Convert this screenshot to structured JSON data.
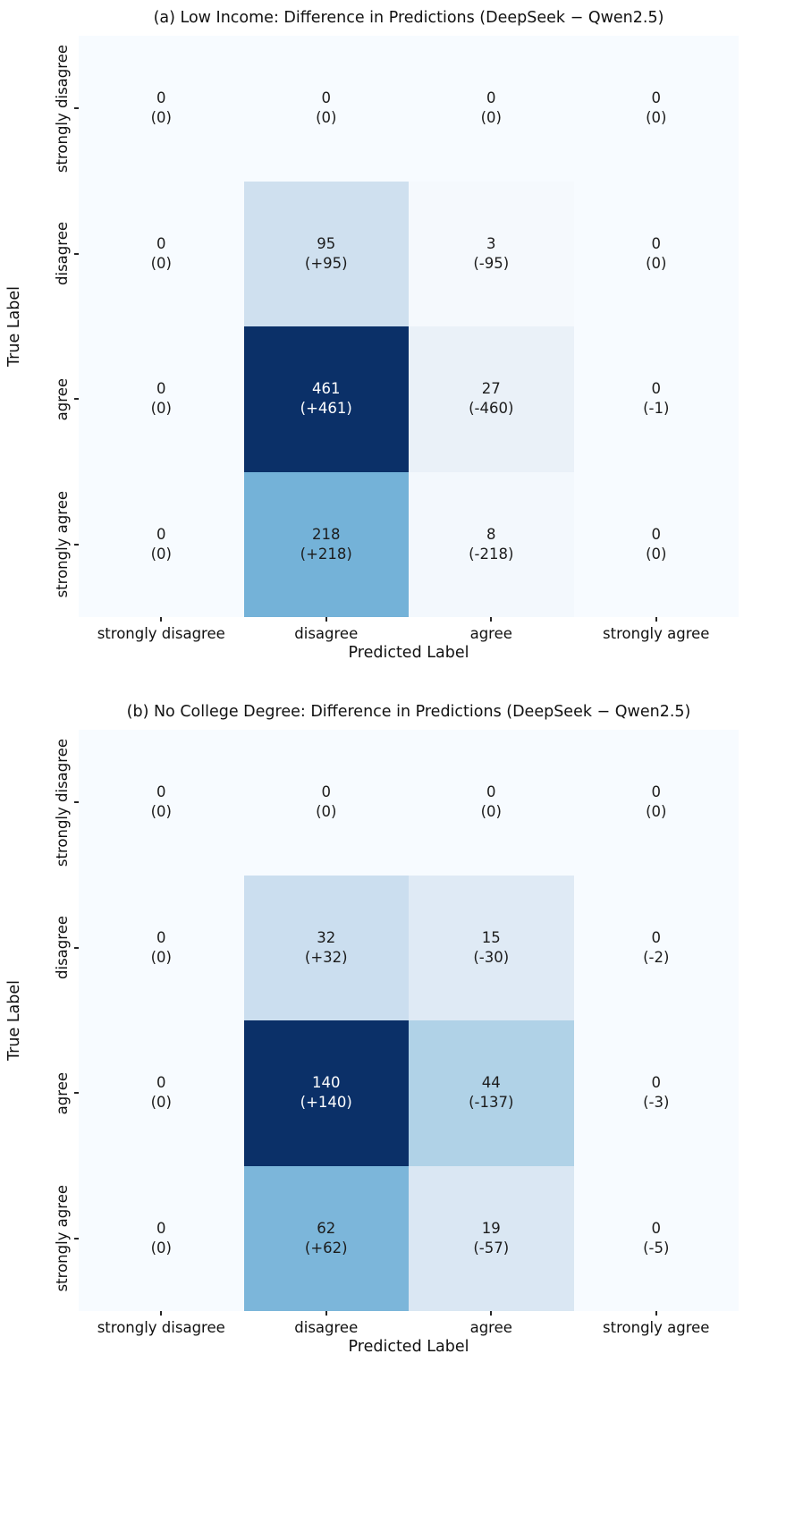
{
  "charts": [
    {
      "title": "(a) Low Income: Difference in Predictions (DeepSeek − Qwen2.5)",
      "xlabel": "Predicted Label",
      "ylabel": "True Label",
      "categories": [
        "strongly disagree",
        "disagree",
        "agree",
        "strongly agree"
      ],
      "cells": [
        [
          {
            "count": "0",
            "diff": "(0)",
            "bg": "#f7fbff",
            "fg": "#1c1c1c"
          },
          {
            "count": "0",
            "diff": "(0)",
            "bg": "#f7fbff",
            "fg": "#1c1c1c"
          },
          {
            "count": "0",
            "diff": "(0)",
            "bg": "#f7fbff",
            "fg": "#1c1c1c"
          },
          {
            "count": "0",
            "diff": "(0)",
            "bg": "#f7fbff",
            "fg": "#1c1c1c"
          }
        ],
        [
          {
            "count": "0",
            "diff": "(0)",
            "bg": "#f7fbff",
            "fg": "#1c1c1c"
          },
          {
            "count": "95",
            "diff": "(+95)",
            "bg": "#cfe0ef",
            "fg": "#1c1c1c"
          },
          {
            "count": "3",
            "diff": "(-95)",
            "bg": "#f5f9fd",
            "fg": "#1c1c1c"
          },
          {
            "count": "0",
            "diff": "(0)",
            "bg": "#f7fbff",
            "fg": "#1c1c1c"
          }
        ],
        [
          {
            "count": "0",
            "diff": "(0)",
            "bg": "#f7fbff",
            "fg": "#1c1c1c"
          },
          {
            "count": "461",
            "diff": "(+461)",
            "bg": "#0b3068",
            "fg": "#ffffff"
          },
          {
            "count": "27",
            "diff": "(-460)",
            "bg": "#eaf1f8",
            "fg": "#1c1c1c"
          },
          {
            "count": "0",
            "diff": "(-1)",
            "bg": "#f7fbff",
            "fg": "#1c1c1c"
          }
        ],
        [
          {
            "count": "0",
            "diff": "(0)",
            "bg": "#f7fbff",
            "fg": "#1c1c1c"
          },
          {
            "count": "218",
            "diff": "(+218)",
            "bg": "#74b2d8",
            "fg": "#1c1c1c"
          },
          {
            "count": "8",
            "diff": "(-218)",
            "bg": "#f3f8fd",
            "fg": "#1c1c1c"
          },
          {
            "count": "0",
            "diff": "(0)",
            "bg": "#f7fbff",
            "fg": "#1c1c1c"
          }
        ]
      ]
    },
    {
      "title": "(b) No College Degree: Difference in Predictions (DeepSeek − Qwen2.5)",
      "xlabel": "Predicted Label",
      "ylabel": "True Label",
      "categories": [
        "strongly disagree",
        "disagree",
        "agree",
        "strongly agree"
      ],
      "cells": [
        [
          {
            "count": "0",
            "diff": "(0)",
            "bg": "#f7fbff",
            "fg": "#1c1c1c"
          },
          {
            "count": "0",
            "diff": "(0)",
            "bg": "#f7fbff",
            "fg": "#1c1c1c"
          },
          {
            "count": "0",
            "diff": "(0)",
            "bg": "#f7fbff",
            "fg": "#1c1c1c"
          },
          {
            "count": "0",
            "diff": "(0)",
            "bg": "#f7fbff",
            "fg": "#1c1c1c"
          }
        ],
        [
          {
            "count": "0",
            "diff": "(0)",
            "bg": "#f7fbff",
            "fg": "#1c1c1c"
          },
          {
            "count": "32",
            "diff": "(+32)",
            "bg": "#cbdeef",
            "fg": "#1c1c1c"
          },
          {
            "count": "15",
            "diff": "(-30)",
            "bg": "#dfeaf5",
            "fg": "#1c1c1c"
          },
          {
            "count": "0",
            "diff": "(-2)",
            "bg": "#f7fbff",
            "fg": "#1c1c1c"
          }
        ],
        [
          {
            "count": "0",
            "diff": "(0)",
            "bg": "#f7fbff",
            "fg": "#1c1c1c"
          },
          {
            "count": "140",
            "diff": "(+140)",
            "bg": "#0b3068",
            "fg": "#ffffff"
          },
          {
            "count": "44",
            "diff": "(-137)",
            "bg": "#b0d2e7",
            "fg": "#1c1c1c"
          },
          {
            "count": "0",
            "diff": "(-3)",
            "bg": "#f7fbff",
            "fg": "#1c1c1c"
          }
        ],
        [
          {
            "count": "0",
            "diff": "(0)",
            "bg": "#f7fbff",
            "fg": "#1c1c1c"
          },
          {
            "count": "62",
            "diff": "(+62)",
            "bg": "#7cb6da",
            "fg": "#1c1c1c"
          },
          {
            "count": "19",
            "diff": "(-57)",
            "bg": "#dae7f3",
            "fg": "#1c1c1c"
          },
          {
            "count": "0",
            "diff": "(-5)",
            "bg": "#f7fbff",
            "fg": "#1c1c1c"
          }
        ]
      ]
    }
  ],
  "chart_data": [
    {
      "type": "heatmap",
      "title": "(a) Low Income: Difference in Predictions (DeepSeek − Qwen2.5)",
      "xlabel": "Predicted Label",
      "ylabel": "True Label",
      "x_categories": [
        "strongly disagree",
        "disagree",
        "agree",
        "strongly agree"
      ],
      "y_categories": [
        "strongly disagree",
        "disagree",
        "agree",
        "strongly agree"
      ],
      "values": [
        [
          0,
          0,
          0,
          0
        ],
        [
          0,
          95,
          3,
          0
        ],
        [
          0,
          461,
          27,
          0
        ],
        [
          0,
          218,
          8,
          0
        ]
      ],
      "diffs": [
        [
          0,
          0,
          0,
          0
        ],
        [
          0,
          95,
          -95,
          0
        ],
        [
          0,
          461,
          -460,
          -1
        ],
        [
          0,
          218,
          -218,
          0
        ]
      ],
      "cell_label_format": "count newline (diff)",
      "colormap": "Blues",
      "color_min": "#f7fbff",
      "color_max": "#0b3068",
      "legend": "none",
      "grid": false
    },
    {
      "type": "heatmap",
      "title": "(b) No College Degree: Difference in Predictions (DeepSeek − Qwen2.5)",
      "xlabel": "Predicted Label",
      "ylabel": "True Label",
      "x_categories": [
        "strongly disagree",
        "disagree",
        "agree",
        "strongly agree"
      ],
      "y_categories": [
        "strongly disagree",
        "disagree",
        "agree",
        "strongly agree"
      ],
      "values": [
        [
          0,
          0,
          0,
          0
        ],
        [
          0,
          32,
          15,
          0
        ],
        [
          0,
          140,
          44,
          0
        ],
        [
          0,
          62,
          19,
          0
        ]
      ],
      "diffs": [
        [
          0,
          0,
          0,
          0
        ],
        [
          0,
          32,
          -30,
          -2
        ],
        [
          0,
          140,
          -137,
          -3
        ],
        [
          0,
          62,
          -57,
          -5
        ]
      ],
      "cell_label_format": "count newline (diff)",
      "colormap": "Blues",
      "color_min": "#f7fbff",
      "color_max": "#0b3068",
      "legend": "none",
      "grid": false
    }
  ]
}
